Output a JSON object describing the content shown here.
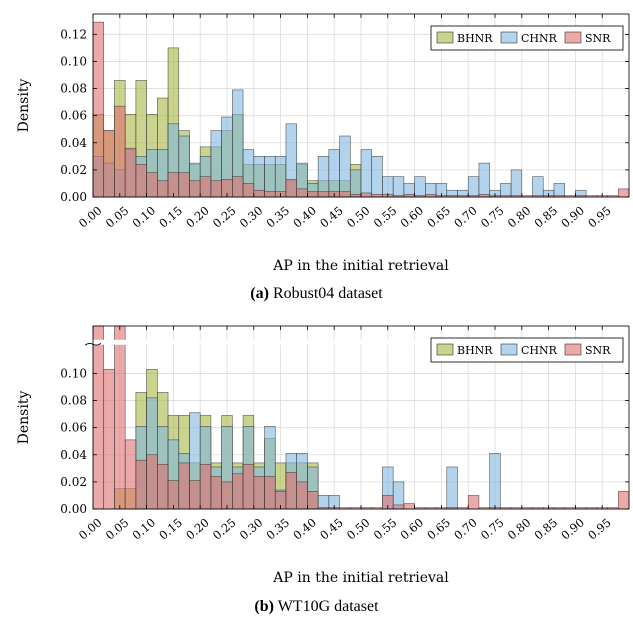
{
  "chart_data": [
    {
      "type": "bar",
      "caption_tag": "(a)",
      "caption_text": "Robust04 dataset",
      "xlabel": "AP in the initial retrieval",
      "ylabel": "Density",
      "xlim": [
        0,
        1
      ],
      "ylim": [
        0,
        0.135
      ],
      "bin_width": 0.02,
      "yticks": [
        0.0,
        0.02,
        0.04,
        0.06,
        0.08,
        0.1,
        0.12
      ],
      "ytick_labels": [
        "0.00",
        "0.02",
        "0.04",
        "0.06",
        "0.08",
        "0.10",
        "0.12"
      ],
      "xticks": [
        0.0,
        0.05,
        0.1,
        0.15,
        0.2,
        0.25,
        0.3,
        0.35,
        0.4,
        0.45,
        0.5,
        0.55,
        0.6,
        0.65,
        0.7,
        0.75,
        0.8,
        0.85,
        0.9,
        0.95
      ],
      "xtick_labels": [
        "0.00",
        "0.05",
        "0.10",
        "0.15",
        "0.20",
        "0.25",
        "0.30",
        "0.35",
        "0.40",
        "0.45",
        "0.50",
        "0.55",
        "0.60",
        "0.65",
        "0.70",
        "0.75",
        "0.80",
        "0.85",
        "0.90",
        "0.95"
      ],
      "legend_position": "top-right",
      "series": [
        {
          "name": "BHNR",
          "color": "#a9b845",
          "values": [
            0.061,
            0.049,
            0.086,
            0.061,
            0.086,
            0.061,
            0.073,
            0.11,
            0.049,
            0.024,
            0.037,
            0.037,
            0.049,
            0.061,
            0.024,
            0.024,
            0.024,
            0.024,
            0.012,
            0.024,
            0.012,
            0.012,
            0.012,
            0.012,
            0.024,
            0,
            0,
            0,
            0,
            0,
            0,
            0,
            0,
            0,
            0,
            0,
            0,
            0,
            0,
            0,
            0,
            0,
            0,
            0,
            0,
            0,
            0,
            0,
            0,
            0
          ]
        },
        {
          "name": "CHNR",
          "color": "#80b8e0",
          "values": [
            0.03,
            0.025,
            0.02,
            0.035,
            0.03,
            0.035,
            0.035,
            0.054,
            0.045,
            0.025,
            0.03,
            0.049,
            0.059,
            0.079,
            0.035,
            0.03,
            0.03,
            0.03,
            0.054,
            0.025,
            0.01,
            0.03,
            0.035,
            0.045,
            0.02,
            0.035,
            0.03,
            0.015,
            0.015,
            0.01,
            0.015,
            0.01,
            0.01,
            0.005,
            0.005,
            0.015,
            0.025,
            0.005,
            0.01,
            0.02,
            0,
            0.015,
            0.005,
            0.01,
            0,
            0.005,
            0,
            0,
            0,
            0
          ]
        },
        {
          "name": "SNR",
          "color": "#e07070",
          "values": [
            0.129,
            0.049,
            0.067,
            0.036,
            0.024,
            0.018,
            0.012,
            0.018,
            0.018,
            0.012,
            0.015,
            0.012,
            0.013,
            0.015,
            0.01,
            0.005,
            0.004,
            0.004,
            0.013,
            0.006,
            0.004,
            0.004,
            0.004,
            0.004,
            0.002,
            0.003,
            0.002,
            0.002,
            0.001,
            0.002,
            0.001,
            0.002,
            0.001,
            0.001,
            0.001,
            0.001,
            0.002,
            0.001,
            0.001,
            0.001,
            0.001,
            0.001,
            0.001,
            0.001,
            0.001,
            0.001,
            0.001,
            0.001,
            0.001,
            0.006
          ]
        }
      ]
    },
    {
      "type": "bar",
      "caption_tag": "(b)",
      "caption_text": "WT10G dataset",
      "xlabel": "AP in the initial retrieval",
      "ylabel": "Density",
      "xlim": [
        0,
        1
      ],
      "ylim": [
        0,
        0.135
      ],
      "axis_break": true,
      "bin_width": 0.02,
      "yticks": [
        0.0,
        0.02,
        0.04,
        0.06,
        0.08,
        0.1
      ],
      "ytick_labels": [
        "0.00",
        "0.02",
        "0.04",
        "0.06",
        "0.08",
        "0.10"
      ],
      "xticks": [
        0.0,
        0.05,
        0.1,
        0.15,
        0.2,
        0.25,
        0.3,
        0.35,
        0.4,
        0.45,
        0.5,
        0.55,
        0.6,
        0.65,
        0.7,
        0.75,
        0.8,
        0.85,
        0.9,
        0.95
      ],
      "xtick_labels": [
        "0.00",
        "0.05",
        "0.10",
        "0.15",
        "0.20",
        "0.25",
        "0.30",
        "0.35",
        "0.40",
        "0.45",
        "0.50",
        "0.55",
        "0.60",
        "0.65",
        "0.70",
        "0.75",
        "0.80",
        "0.85",
        "0.90",
        "0.95"
      ],
      "legend_position": "top-right",
      "series": [
        {
          "name": "BHNR",
          "color": "#a9b845",
          "values": [
            0,
            0,
            0.015,
            0.015,
            0.086,
            0.103,
            0.086,
            0.069,
            0.069,
            0.034,
            0.069,
            0.034,
            0.069,
            0.034,
            0.069,
            0.034,
            0.052,
            0.034,
            0.034,
            0.034,
            0.034,
            0,
            0,
            0,
            0,
            0,
            0,
            0,
            0,
            0,
            0,
            0,
            0,
            0,
            0,
            0,
            0,
            0,
            0,
            0,
            0,
            0,
            0,
            0,
            0,
            0,
            0,
            0,
            0,
            0
          ]
        },
        {
          "name": "CHNR",
          "color": "#80b8e0",
          "values": [
            0,
            0,
            0,
            0,
            0.061,
            0.082,
            0.061,
            0.051,
            0.041,
            0.071,
            0.061,
            0.031,
            0.061,
            0.031,
            0.061,
            0.031,
            0.061,
            0.014,
            0.041,
            0.041,
            0.031,
            0.01,
            0.01,
            0,
            0,
            0,
            0,
            0.031,
            0.02,
            0,
            0,
            0,
            0,
            0.031,
            0,
            0,
            0,
            0.041,
            0,
            0,
            0,
            0,
            0,
            0,
            0,
            0,
            0,
            0,
            0,
            0
          ]
        },
        {
          "name": "SNR",
          "color": "#e07070",
          "values": [
            0.17,
            0.103,
            0.17,
            0.051,
            0.036,
            0.04,
            0.033,
            0.021,
            0.034,
            0.021,
            0.033,
            0.024,
            0.02,
            0.026,
            0.033,
            0.024,
            0.024,
            0.013,
            0.027,
            0.02,
            0.013,
            0.001,
            0.001,
            0.001,
            0.001,
            0.001,
            0.001,
            0.01,
            0.003,
            0.004,
            0.001,
            0.001,
            0.001,
            0.001,
            0.001,
            0.01,
            0.001,
            0.001,
            0.001,
            0.001,
            0.001,
            0.001,
            0.001,
            0.001,
            0.001,
            0.001,
            0.001,
            0.001,
            0.001,
            0.013
          ]
        }
      ]
    }
  ]
}
